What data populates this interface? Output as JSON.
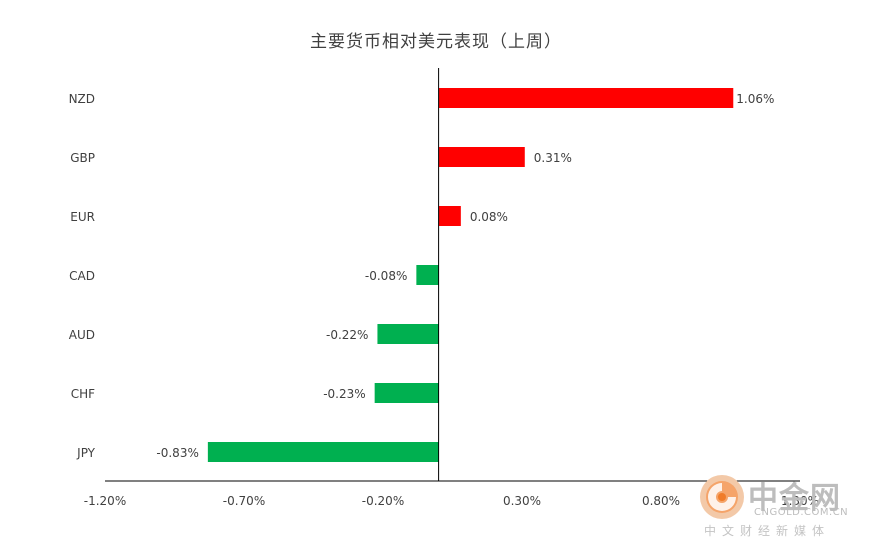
{
  "colors": {
    "positive": "#ff0000",
    "negative": "#00b050",
    "axis": "#000000",
    "text": "#404040"
  },
  "watermark": {
    "cn": "中金网",
    "en": "CNGOLD.COM.CN",
    "sub": "中文财经新媒体"
  },
  "chart_data": {
    "type": "bar",
    "orientation": "horizontal",
    "title": "主要货币相对美元表现（上周）",
    "categories": [
      "NZD",
      "GBP",
      "EUR",
      "CAD",
      "AUD",
      "CHF",
      "JPY"
    ],
    "values": [
      1.06,
      0.31,
      0.08,
      -0.08,
      -0.22,
      -0.23,
      -0.83
    ],
    "value_labels": [
      "1.06%",
      "0.31%",
      "0.08%",
      "-0.08%",
      "-0.22%",
      "-0.23%",
      "-0.83%"
    ],
    "xlim": [
      -1.2,
      1.3
    ],
    "xticks": [
      -1.2,
      -0.7,
      -0.2,
      0.3,
      0.8,
      1.3
    ],
    "xtick_labels": [
      "-1.20%",
      "-0.70%",
      "-0.20%",
      "0.30%",
      "0.80%",
      "1.30%"
    ],
    "grid": false,
    "legend": "none"
  }
}
